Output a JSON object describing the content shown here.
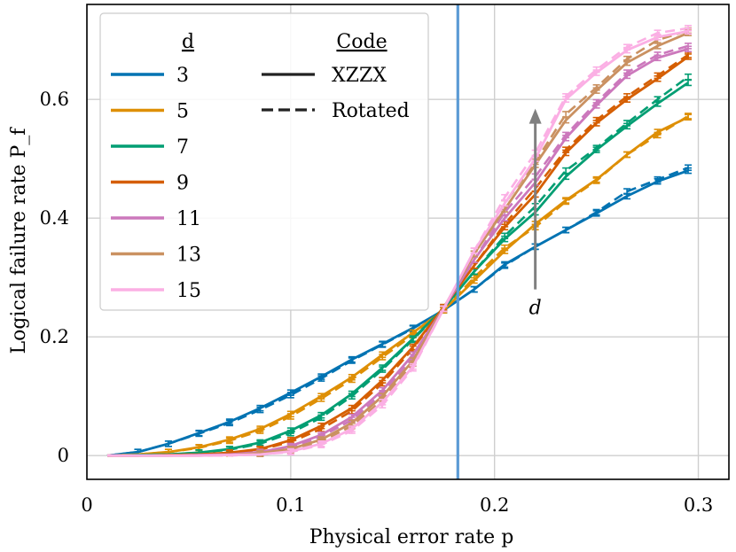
{
  "chart_data": {
    "type": "line",
    "title": "",
    "xlabel": "Physical error rate p",
    "ylabel": "Logical failure rate P_f",
    "xlim": [
      0,
      0.315
    ],
    "ylim": [
      -0.04,
      0.76
    ],
    "x_ticks": [
      0,
      0.1,
      0.2,
      0.3
    ],
    "x_tick_labels": [
      "0",
      "0.1",
      "0.2",
      "0.3"
    ],
    "y_ticks": [
      0,
      0.2,
      0.4,
      0.6
    ],
    "y_tick_labels": [
      "0",
      "0.2",
      "0.4",
      "0.6"
    ],
    "grid": true,
    "threshold_line": {
      "x": 0.182,
      "color": "#5b9bd5"
    },
    "x": [
      0.01,
      0.025,
      0.04,
      0.055,
      0.07,
      0.085,
      0.1,
      0.115,
      0.13,
      0.145,
      0.16,
      0.175,
      0.19,
      0.205,
      0.22,
      0.235,
      0.25,
      0.265,
      0.28,
      0.295
    ],
    "legend": {
      "position": "upper-left",
      "distance_title": "d",
      "code_title": "Code",
      "code_entries": [
        {
          "label": "XZZX",
          "style": "solid"
        },
        {
          "label": "Rotated",
          "style": "dashed"
        }
      ]
    },
    "series": [
      {
        "name": "3",
        "color": "#0173b2",
        "values": [
          0.0,
          0.006,
          0.02,
          0.038,
          0.057,
          0.08,
          0.106,
          0.133,
          0.162,
          0.188,
          0.215,
          0.245,
          0.28,
          0.322,
          0.352,
          0.38,
          0.408,
          0.437,
          0.462,
          0.48
        ],
        "values_rotated": [
          0.0,
          0.006,
          0.02,
          0.037,
          0.055,
          0.077,
          0.102,
          0.13,
          0.16,
          0.187,
          0.214,
          0.245,
          0.28,
          0.32,
          0.352,
          0.38,
          0.41,
          0.445,
          0.465,
          0.485
        ]
      },
      {
        "name": "5",
        "color": "#de8f05",
        "values": [
          0.0,
          0.002,
          0.006,
          0.014,
          0.027,
          0.045,
          0.07,
          0.1,
          0.132,
          0.17,
          0.207,
          0.245,
          0.295,
          0.345,
          0.39,
          0.43,
          0.465,
          0.507,
          0.545,
          0.57
        ],
        "values_rotated": [
          0.0,
          0.002,
          0.006,
          0.013,
          0.025,
          0.042,
          0.066,
          0.096,
          0.128,
          0.166,
          0.203,
          0.245,
          0.3,
          0.35,
          0.385,
          0.428,
          0.463,
          0.507,
          0.54,
          0.572
        ]
      },
      {
        "name": "7",
        "color": "#029e73",
        "values": [
          0.0,
          0.001,
          0.002,
          0.005,
          0.011,
          0.022,
          0.042,
          0.068,
          0.104,
          0.148,
          0.197,
          0.248,
          0.31,
          0.365,
          0.41,
          0.47,
          0.515,
          0.555,
          0.593,
          0.628
        ],
        "values_rotated": [
          0.0,
          0.001,
          0.002,
          0.005,
          0.01,
          0.02,
          0.038,
          0.064,
          0.1,
          0.145,
          0.195,
          0.248,
          0.31,
          0.37,
          0.42,
          0.48,
          0.518,
          0.56,
          0.6,
          0.638
        ]
      },
      {
        "name": "9",
        "color": "#d55e00",
        "values": [
          0.0,
          0.0,
          0.001,
          0.002,
          0.005,
          0.011,
          0.026,
          0.05,
          0.08,
          0.127,
          0.183,
          0.25,
          0.32,
          0.385,
          0.44,
          0.51,
          0.56,
          0.6,
          0.635,
          0.672
        ],
        "values_rotated": [
          0.0,
          0.0,
          0.001,
          0.002,
          0.004,
          0.01,
          0.023,
          0.045,
          0.075,
          0.122,
          0.18,
          0.25,
          0.32,
          0.39,
          0.45,
          0.515,
          0.565,
          0.605,
          0.64,
          0.675
        ]
      },
      {
        "name": "11",
        "color": "#cc78bc",
        "values": [
          0.0,
          0.0,
          0.0,
          0.001,
          0.002,
          0.006,
          0.016,
          0.035,
          0.065,
          0.11,
          0.17,
          0.248,
          0.33,
          0.4,
          0.46,
          0.535,
          0.59,
          0.64,
          0.67,
          0.685
        ],
        "values_rotated": [
          0.0,
          0.0,
          0.0,
          0.001,
          0.002,
          0.005,
          0.014,
          0.032,
          0.06,
          0.105,
          0.166,
          0.248,
          0.33,
          0.41,
          0.47,
          0.54,
          0.595,
          0.645,
          0.675,
          0.69
        ]
      },
      {
        "name": "13",
        "color": "#ca9161",
        "values": [
          0.0,
          0.0,
          0.0,
          0.0,
          0.001,
          0.004,
          0.011,
          0.027,
          0.055,
          0.1,
          0.16,
          0.248,
          0.34,
          0.415,
          0.49,
          0.565,
          0.615,
          0.662,
          0.69,
          0.712
        ],
        "values_rotated": [
          0.0,
          0.0,
          0.0,
          0.0,
          0.001,
          0.003,
          0.009,
          0.024,
          0.05,
          0.094,
          0.155,
          0.248,
          0.34,
          0.425,
          0.495,
          0.575,
          0.62,
          0.668,
          0.7,
          0.716
        ]
      },
      {
        "name": "15",
        "color": "#fbafe4",
        "values": [
          0.0,
          0.0,
          0.0,
          0.0,
          0.001,
          0.002,
          0.007,
          0.02,
          0.045,
          0.09,
          0.15,
          0.247,
          0.345,
          0.425,
          0.5,
          0.6,
          0.645,
          0.683,
          0.705,
          0.715
        ],
        "values_rotated": [
          0.0,
          0.0,
          0.0,
          0.0,
          0.0,
          0.002,
          0.006,
          0.018,
          0.042,
          0.085,
          0.147,
          0.247,
          0.345,
          0.435,
          0.51,
          0.605,
          0.65,
          0.688,
          0.712,
          0.72
        ]
      }
    ],
    "annotation": {
      "label": "d",
      "x": 0.22,
      "y_from": 0.28,
      "y_to": 0.58,
      "color": "#808080"
    }
  }
}
